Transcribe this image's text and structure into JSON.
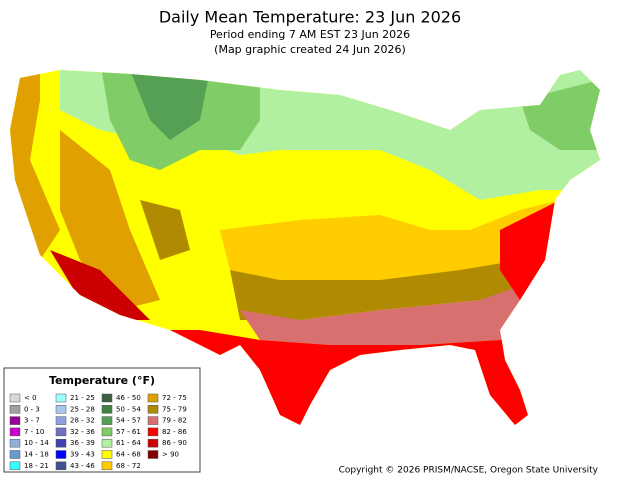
{
  "header": {
    "title": "Daily Mean Temperature: 23 Jun 2026",
    "subtitle": "Period ending 7 AM EST 23 Jun 2026",
    "note": "(Map graphic created 24 Jun 2026)"
  },
  "legend": {
    "title": "Temperature (°F)",
    "items": [
      {
        "label": "< 0",
        "color": "#d9d9d9"
      },
      {
        "label": "0 - 3",
        "color": "#a0a0a0"
      },
      {
        "label": "3 - 7",
        "color": "#990099"
      },
      {
        "label": "7 - 10",
        "color": "#cc00cc"
      },
      {
        "label": "10 - 14",
        "color": "#90b0d8"
      },
      {
        "label": "14 - 18",
        "color": "#6699cc"
      },
      {
        "label": "18 - 21",
        "color": "#33ffff"
      },
      {
        "label": "21 - 25",
        "color": "#99ffff"
      },
      {
        "label": "25 - 28",
        "color": "#a8c8f0"
      },
      {
        "label": "28 - 32",
        "color": "#90a0e0"
      },
      {
        "label": "32 - 36",
        "color": "#7070c0"
      },
      {
        "label": "36 - 39",
        "color": "#4040b0"
      },
      {
        "label": "39 - 43",
        "color": "#0000ff"
      },
      {
        "label": "43 - 46",
        "color": "#405090"
      },
      {
        "label": "46 - 50",
        "color": "#3a6040"
      },
      {
        "label": "50 - 54",
        "color": "#408040"
      },
      {
        "label": "54 - 57",
        "color": "#55a055"
      },
      {
        "label": "57 - 61",
        "color": "#80cc66"
      },
      {
        "label": "61 - 64",
        "color": "#b0f0a0"
      },
      {
        "label": "64 - 68",
        "color": "#ffff00"
      },
      {
        "label": "68 - 72",
        "color": "#ffcc00"
      },
      {
        "label": "72 - 75",
        "color": "#e0a000"
      },
      {
        "label": "75 - 79",
        "color": "#b08a00"
      },
      {
        "label": "79 - 82",
        "color": "#d87070"
      },
      {
        "label": "82 - 86",
        "color": "#ff0000"
      },
      {
        "label": "86 - 90",
        "color": "#cc0000"
      },
      {
        "label": "> 90",
        "color": "#800000"
      }
    ]
  },
  "footer": {
    "copyright": "Copyright © 2026 PRISM/NACSE, Oregon State University"
  }
}
